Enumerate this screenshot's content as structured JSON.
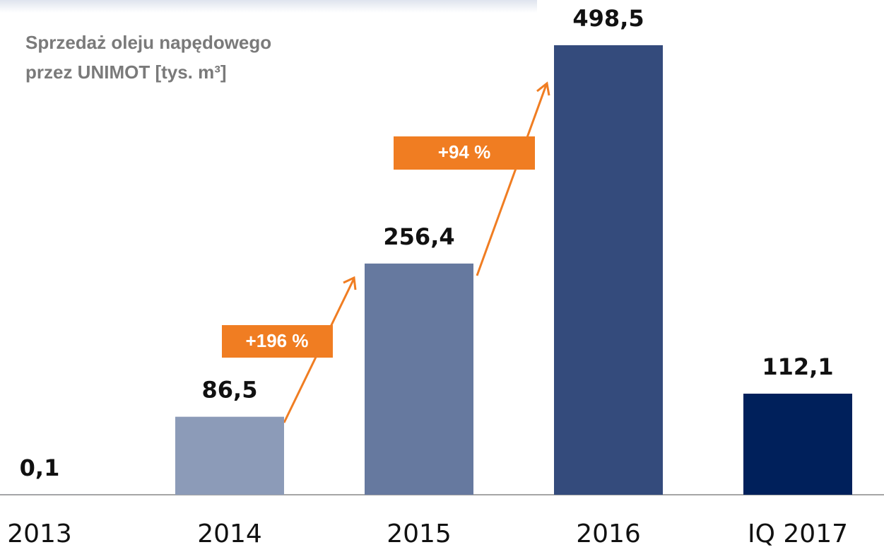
{
  "chart_data": {
    "type": "bar",
    "title": [
      "Sprzedaż oleju napędowego",
      "przez UNIMOT [tys. m³]"
    ],
    "categories": [
      "2013",
      "2014",
      "2015",
      "2016",
      "IQ 2017"
    ],
    "values": [
      0.1,
      86.5,
      256.4,
      498.5,
      112.1
    ],
    "value_labels": [
      "0,1",
      "86,5",
      "256,4",
      "498,5",
      "112,1"
    ],
    "colors": [
      "#8c9bb8",
      "#8c9bb8",
      "#66799f",
      "#344b7c",
      "#00205b"
    ],
    "annotations": [
      "+196 %",
      "+94 %"
    ]
  }
}
